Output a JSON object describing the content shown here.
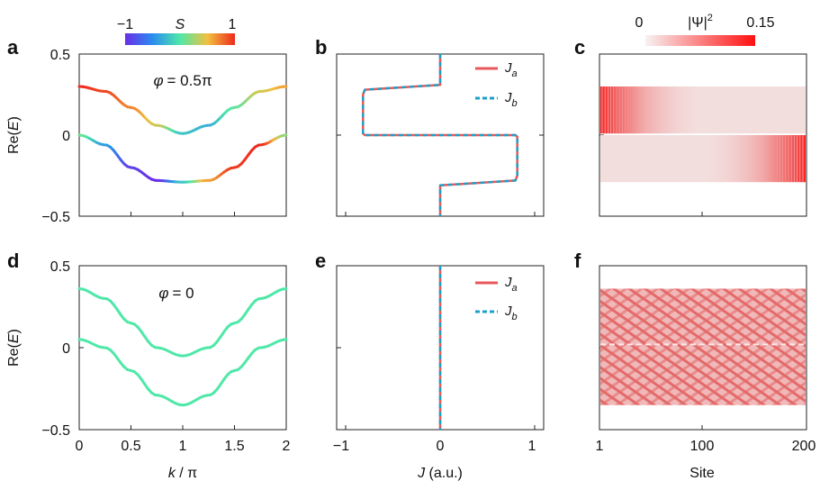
{
  "figure": {
    "colorbar_S": {
      "label": "S",
      "min": "−1",
      "max": "1"
    },
    "colorbar_psi": {
      "label": "|Ψ|",
      "label_sup": "2",
      "min": "0",
      "max": "0.15"
    }
  },
  "chart_data": [
    {
      "panel": "a",
      "type": "line",
      "annotation_phi": "φ",
      "annotation_value": "= 0.5π",
      "xlim": [
        0,
        2
      ],
      "ylim": [
        -0.5,
        0.5
      ],
      "yticks": [
        "0.5",
        "0",
        "−0.5"
      ],
      "ylabel_main": "Re(",
      "ylabel_var": "E",
      "ylabel_tail": ")",
      "series": [
        {
          "name": "upper band",
          "x": [
            0,
            0.25,
            0.5,
            0.75,
            1,
            1.25,
            1.5,
            1.75,
            2
          ],
          "y": [
            0.3,
            0.27,
            0.17,
            0.06,
            0.01,
            0.06,
            0.17,
            0.27,
            0.3
          ],
          "S": [
            1,
            0.9,
            0.7,
            0.4,
            -0.2,
            -0.3,
            0.05,
            0.4,
            0.6
          ]
        },
        {
          "name": "lower band",
          "x": [
            0,
            0.25,
            0.5,
            0.75,
            1,
            1.25,
            1.5,
            1.75,
            2
          ],
          "y": [
            0.0,
            -0.06,
            -0.2,
            -0.28,
            -0.29,
            -0.28,
            -0.2,
            -0.06,
            0.0
          ],
          "S": [
            0.1,
            -0.4,
            -0.9,
            -1,
            -0.2,
            0.6,
            0.95,
            1,
            0.2
          ]
        }
      ]
    },
    {
      "panel": "b",
      "type": "line",
      "xlim": [
        -1.1,
        1.1
      ],
      "ylim": [
        -0.5,
        0.5
      ],
      "legend": [
        {
          "label": "J",
          "sub": "a",
          "color": "#e8575a",
          "dash": "solid"
        },
        {
          "label": "J",
          "sub": "b",
          "color": "#1ca0c8",
          "dash": "dashed"
        }
      ],
      "series": [
        {
          "name": "J_a",
          "x": [
            0,
            0,
            -0.8,
            -0.82,
            -0.82,
            -0.8,
            0.8,
            0.82,
            0.82,
            0.8,
            0,
            0
          ],
          "y": [
            0.5,
            0.31,
            0.28,
            0.25,
            0.01,
            0.0,
            0.0,
            -0.01,
            -0.25,
            -0.28,
            -0.31,
            -0.5
          ]
        },
        {
          "name": "J_b",
          "x": [
            0,
            0,
            -0.8,
            -0.82,
            -0.82,
            -0.8,
            0.8,
            0.82,
            0.82,
            0.8,
            0,
            0
          ],
          "y": [
            0.5,
            0.31,
            0.28,
            0.25,
            0.01,
            0.0,
            0.0,
            -0.01,
            -0.25,
            -0.28,
            -0.31,
            -0.5
          ]
        }
      ]
    },
    {
      "panel": "c",
      "type": "heatmap",
      "xlim": [
        1,
        200
      ],
      "ylim": [
        -0.5,
        0.5
      ],
      "bands": [
        {
          "E_top": 0.3,
          "E_bottom": 0.01,
          "edge": "left"
        },
        {
          "E_top": 0.0,
          "E_bottom": -0.29,
          "edge": "right"
        }
      ],
      "colormax": 0.15
    },
    {
      "panel": "d",
      "type": "line",
      "annotation_phi": "φ",
      "annotation_value": "= 0",
      "xlim": [
        0,
        2
      ],
      "ylim": [
        -0.5,
        0.5
      ],
      "xticks": [
        "0",
        "0.5",
        "1",
        "1.5",
        "2"
      ],
      "yticks": [
        "0.5",
        "0",
        "−0.5"
      ],
      "ylabel_main": "Re(",
      "ylabel_var": "E",
      "ylabel_tail": ")",
      "xlabel_var": "k",
      "xlabel_tail": " / π",
      "series": [
        {
          "name": "upper band",
          "x": [
            0,
            0.25,
            0.5,
            0.75,
            1,
            1.25,
            1.5,
            1.75,
            2
          ],
          "y": [
            0.36,
            0.3,
            0.15,
            0.0,
            -0.05,
            0.0,
            0.15,
            0.3,
            0.36
          ],
          "S": 0
        },
        {
          "name": "lower band",
          "x": [
            0,
            0.25,
            0.5,
            0.75,
            1,
            1.25,
            1.5,
            1.75,
            2
          ],
          "y": [
            0.05,
            0.0,
            -0.14,
            -0.29,
            -0.35,
            -0.29,
            -0.14,
            0.0,
            0.05
          ],
          "S": 0
        }
      ]
    },
    {
      "panel": "e",
      "type": "line",
      "xlim": [
        -1.1,
        1.1
      ],
      "ylim": [
        -0.5,
        0.5
      ],
      "xticks": [
        "−1",
        "0",
        "1"
      ],
      "xlabel_var": "J",
      "xlabel_tail": " (a.u.)",
      "legend": [
        {
          "label": "J",
          "sub": "a",
          "color": "#e8575a",
          "dash": "solid"
        },
        {
          "label": "J",
          "sub": "b",
          "color": "#1ca0c8",
          "dash": "dashed"
        }
      ],
      "series": [
        {
          "name": "J_a",
          "x": [
            0,
            0
          ],
          "y": [
            0.5,
            -0.5
          ]
        },
        {
          "name": "J_b",
          "x": [
            0,
            0
          ],
          "y": [
            0.5,
            -0.5
          ]
        }
      ]
    },
    {
      "panel": "f",
      "type": "heatmap",
      "xlim": [
        1,
        200
      ],
      "ylim": [
        -0.5,
        0.5
      ],
      "xticks": [
        "1",
        "100",
        "200"
      ],
      "xlabel": "Site",
      "band": {
        "E_top": 0.36,
        "E_bottom": -0.35
      },
      "colormax": 0.15
    }
  ],
  "panel_letters": [
    "a",
    "b",
    "c",
    "d",
    "e",
    "f"
  ]
}
